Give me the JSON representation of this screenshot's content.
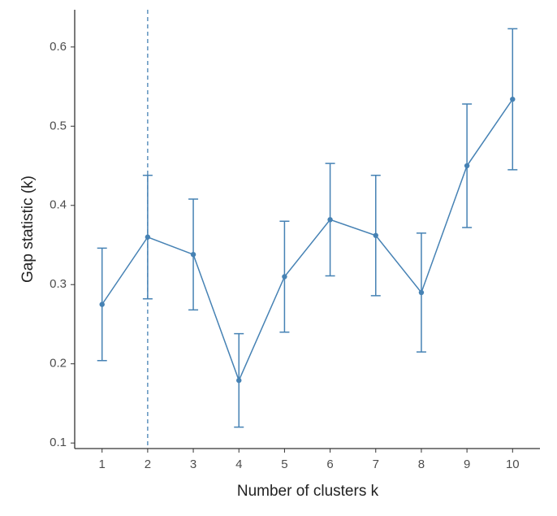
{
  "chart_data": {
    "type": "line",
    "x": [
      1,
      2,
      3,
      4,
      5,
      6,
      7,
      8,
      9,
      10
    ],
    "values": [
      0.275,
      0.36,
      0.338,
      0.179,
      0.31,
      0.382,
      0.362,
      0.29,
      0.45,
      0.534
    ],
    "errors": [
      0.071,
      0.078,
      0.07,
      0.059,
      0.07,
      0.071,
      0.076,
      0.075,
      0.078,
      0.089
    ],
    "color": "#4682b4",
    "vline": 2,
    "xlabel": "Number of clusters k",
    "ylabel": "Gap statistic (k)",
    "xlim": [
      0.4,
      10.6
    ],
    "xticks": [
      1,
      2,
      3,
      4,
      5,
      6,
      7,
      8,
      9,
      10
    ],
    "ylim": [
      0.093,
      0.647
    ],
    "yticks": [
      0.1,
      0.2,
      0.3,
      0.4,
      0.5,
      0.6
    ]
  }
}
